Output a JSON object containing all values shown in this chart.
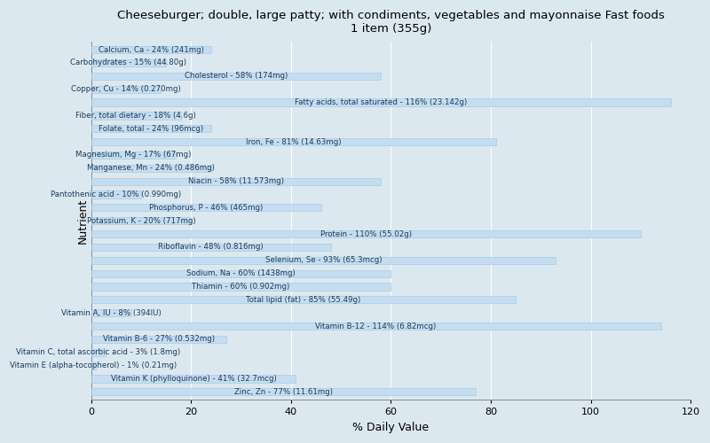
{
  "title": "Cheeseburger; double, large patty; with condiments, vegetables and mayonnaise Fast foods\n1 item (355g)",
  "xlabel": "% Daily Value",
  "ylabel": "Nutrient",
  "xlim": [
    0,
    120
  ],
  "xticks": [
    0,
    20,
    40,
    60,
    80,
    100,
    120
  ],
  "background_color": "#dce8f0",
  "axes_bg_color": "#dce8f0",
  "bar_color": "#c5ddf0",
  "bar_edge_color": "#a0c4e0",
  "text_color": "#1a3a5c",
  "title_fontsize": 9.5,
  "label_fontsize": 6.2,
  "nutrients": [
    {
      "label": "Calcium, Ca - 24% (241mg)",
      "value": 24
    },
    {
      "label": "Carbohydrates - 15% (44.80g)",
      "value": 15
    },
    {
      "label": "Cholesterol - 58% (174mg)",
      "value": 58
    },
    {
      "label": "Copper, Cu - 14% (0.270mg)",
      "value": 14
    },
    {
      "label": "Fatty acids, total saturated - 116% (23.142g)",
      "value": 116
    },
    {
      "label": "Fiber, total dietary - 18% (4.6g)",
      "value": 18
    },
    {
      "label": "Folate, total - 24% (96mcg)",
      "value": 24
    },
    {
      "label": "Iron, Fe - 81% (14.63mg)",
      "value": 81
    },
    {
      "label": "Magnesium, Mg - 17% (67mg)",
      "value": 17
    },
    {
      "label": "Manganese, Mn - 24% (0.486mg)",
      "value": 24
    },
    {
      "label": "Niacin - 58% (11.573mg)",
      "value": 58
    },
    {
      "label": "Pantothenic acid - 10% (0.990mg)",
      "value": 10
    },
    {
      "label": "Phosphorus, P - 46% (465mg)",
      "value": 46
    },
    {
      "label": "Potassium, K - 20% (717mg)",
      "value": 20
    },
    {
      "label": "Protein - 110% (55.02g)",
      "value": 110
    },
    {
      "label": "Riboflavin - 48% (0.816mg)",
      "value": 48
    },
    {
      "label": "Selenium, Se - 93% (65.3mcg)",
      "value": 93
    },
    {
      "label": "Sodium, Na - 60% (1438mg)",
      "value": 60
    },
    {
      "label": "Thiamin - 60% (0.902mg)",
      "value": 60
    },
    {
      "label": "Total lipid (fat) - 85% (55.49g)",
      "value": 85
    },
    {
      "label": "Vitamin A, IU - 8% (394IU)",
      "value": 8
    },
    {
      "label": "Vitamin B-12 - 114% (6.82mcg)",
      "value": 114
    },
    {
      "label": "Vitamin B-6 - 27% (0.532mg)",
      "value": 27
    },
    {
      "label": "Vitamin C, total ascorbic acid - 3% (1.8mg)",
      "value": 3
    },
    {
      "label": "Vitamin E (alpha-tocopherol) - 1% (0.21mg)",
      "value": 1
    },
    {
      "label": "Vitamin K (phylloquinone) - 41% (32.7mcg)",
      "value": 41
    },
    {
      "label": "Zinc, Zn - 77% (11.61mg)",
      "value": 77
    }
  ]
}
